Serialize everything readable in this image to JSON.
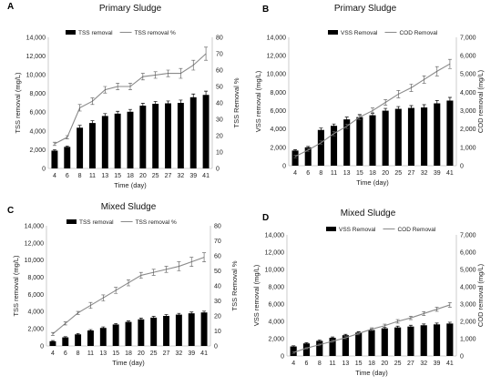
{
  "chart_data": [
    {
      "panel": "A",
      "type": "bar+line",
      "title": "Primary Sludge",
      "xlabel": "Time (day)",
      "ylabel": "TSS removal (mg/L)",
      "y2label": "TSS Removal %",
      "categories": [
        "4",
        "6",
        "8",
        "11",
        "13",
        "15",
        "18",
        "20",
        "25",
        "27",
        "32",
        "39",
        "41"
      ],
      "ylim": [
        0,
        14000
      ],
      "y2lim": [
        0,
        80
      ],
      "series": [
        {
          "name": "TSS removal",
          "kind": "bar",
          "axis": "left",
          "values": [
            1900,
            2300,
            4350,
            4850,
            5600,
            5850,
            6050,
            6700,
            6900,
            6950,
            7000,
            7600,
            7850
          ],
          "errors": [
            100,
            100,
            250,
            250,
            250,
            250,
            250,
            250,
            250,
            250,
            300,
            350,
            400
          ]
        },
        {
          "name": "TSS removal %",
          "kind": "line",
          "axis": "right",
          "values": [
            15,
            19,
            37,
            41,
            48,
            50,
            50,
            56,
            57,
            58,
            58,
            63,
            70
          ],
          "errors": [
            1,
            1,
            2,
            2,
            2,
            2,
            2,
            2,
            2,
            2,
            3,
            3,
            4
          ]
        }
      ],
      "legend": "top"
    },
    {
      "panel": "B",
      "type": "bar+line",
      "title": "Primary Sludge",
      "xlabel": "Time (day)",
      "ylabel": "VSS removal (mg/L)",
      "y2label": "COD removal (mg/L)",
      "categories": [
        "4",
        "6",
        "8",
        "11",
        "13",
        "15",
        "18",
        "20",
        "25",
        "27",
        "32",
        "39",
        "41"
      ],
      "ylim": [
        0,
        14000
      ],
      "y2lim": [
        0,
        7000
      ],
      "series": [
        {
          "name": "VSS Removal",
          "kind": "bar",
          "axis": "left",
          "values": [
            1650,
            2000,
            3900,
            4350,
            5050,
            5300,
            5500,
            6000,
            6200,
            6300,
            6350,
            6800,
            7100
          ],
          "errors": [
            100,
            100,
            200,
            200,
            250,
            250,
            250,
            250,
            250,
            250,
            300,
            300,
            350
          ]
        },
        {
          "name": "COD Removal",
          "kind": "line",
          "axis": "right",
          "values": [
            500,
            850,
            1250,
            1750,
            2150,
            2650,
            3000,
            3450,
            3900,
            4250,
            4700,
            5150,
            5550
          ],
          "errors": [
            80,
            80,
            100,
            120,
            120,
            150,
            150,
            150,
            200,
            200,
            200,
            250,
            250
          ]
        }
      ],
      "legend": "top"
    },
    {
      "panel": "C",
      "type": "bar+line",
      "title": "Mixed Sludge",
      "xlabel": "Time (day)",
      "ylabel": "TSS removal (mg/L)",
      "y2label": "TSS Removal %",
      "categories": [
        "4",
        "6",
        "8",
        "11",
        "13",
        "15",
        "18",
        "20",
        "25",
        "27",
        "32",
        "39",
        "41"
      ],
      "ylim": [
        0,
        14000
      ],
      "y2lim": [
        0,
        80
      ],
      "series": [
        {
          "name": "TSS removal",
          "kind": "bar",
          "axis": "left",
          "values": [
            550,
            1000,
            1350,
            1800,
            2100,
            2500,
            2800,
            3100,
            3300,
            3500,
            3650,
            3800,
            3900
          ],
          "errors": [
            80,
            80,
            100,
            100,
            120,
            120,
            120,
            150,
            150,
            150,
            150,
            150,
            150
          ]
        },
        {
          "name": "TSS removal %",
          "kind": "line",
          "axis": "right",
          "values": [
            8,
            15,
            22,
            27,
            32,
            37,
            42,
            47,
            49,
            51,
            53,
            56,
            59
          ],
          "errors": [
            1,
            1,
            1,
            2,
            2,
            2,
            2,
            2,
            2,
            2,
            3,
            3,
            3
          ]
        }
      ],
      "legend": "top"
    },
    {
      "panel": "D",
      "type": "bar+line",
      "title": "Mixed Sludge",
      "xlabel": "Time (day)",
      "ylabel": "VSS removal (mg/L)",
      "y2label": "COD removal (mg/L)",
      "categories": [
        "4",
        "6",
        "8",
        "11",
        "13",
        "15",
        "18",
        "20",
        "25",
        "27",
        "32",
        "39",
        "41"
      ],
      "ylim": [
        0,
        14000
      ],
      "y2lim": [
        0,
        7000
      ],
      "series": [
        {
          "name": "VSS Removal",
          "kind": "bar",
          "axis": "left",
          "values": [
            1100,
            1450,
            1750,
            2100,
            2400,
            2700,
            3000,
            3200,
            3300,
            3400,
            3550,
            3650,
            3750
          ],
          "errors": [
            80,
            80,
            100,
            100,
            100,
            120,
            120,
            120,
            150,
            150,
            150,
            150,
            150
          ]
        },
        {
          "name": "COD Removal",
          "kind": "line",
          "axis": "right",
          "values": [
            200,
            450,
            650,
            850,
            1050,
            1300,
            1550,
            1750,
            2000,
            2200,
            2450,
            2700,
            2950
          ],
          "errors": [
            50,
            50,
            60,
            60,
            70,
            80,
            80,
            90,
            100,
            100,
            110,
            120,
            130
          ]
        }
      ],
      "legend": "top"
    }
  ]
}
